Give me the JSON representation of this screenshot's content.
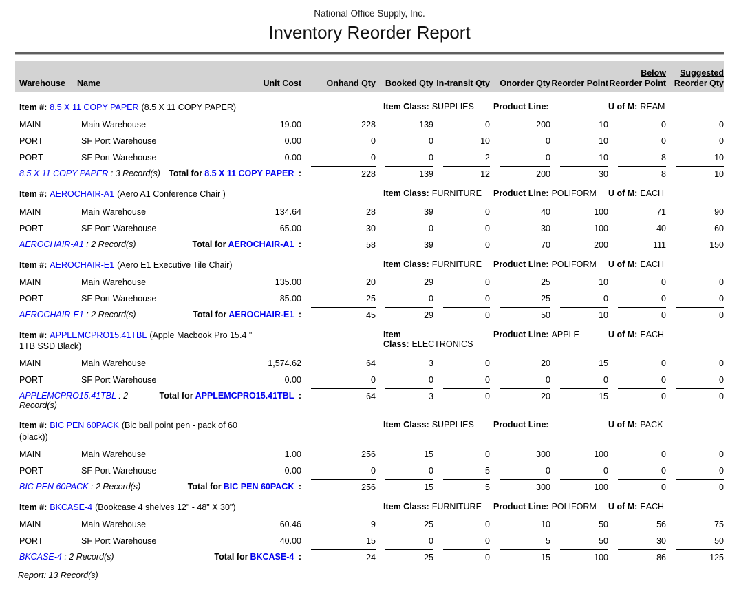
{
  "header": {
    "company": "National Office Supply, Inc.",
    "title": "Inventory Reorder Report"
  },
  "labels": {
    "item": "Item #:",
    "item_class": "Item Class:",
    "product_line": "Product Line:",
    "uom": "U of M:",
    "total_for": "Total for",
    "colon": " :",
    "sep": " : "
  },
  "columns": [
    [
      "Warehouse"
    ],
    [
      "Name"
    ],
    [
      "Unit Cost"
    ],
    [
      "Onhand Qty"
    ],
    [
      "Booked Qty"
    ],
    [
      "In-transit Qty"
    ],
    [
      "Onorder Qty"
    ],
    [
      "Reorder Point"
    ],
    [
      "Below",
      "Reorder Point"
    ],
    [
      "Suggested",
      "Reorder Qty"
    ]
  ],
  "groups": [
    {
      "code": "8.5 X 11 COPY PAPER",
      "description": "(8.5 X 11 COPY PAPER)",
      "item_class": "SUPPLIES",
      "product_line": "",
      "uom": "REAM",
      "rows": [
        {
          "warehouse": "MAIN",
          "name": "Main Warehouse",
          "unit_cost": "19.00",
          "qtys": [
            "228",
            "139",
            "0",
            "200",
            "10",
            "0",
            "0"
          ]
        },
        {
          "warehouse": "PORT",
          "name": "SF Port Warehouse",
          "unit_cost": "0.00",
          "qtys": [
            "0",
            "0",
            "10",
            "0",
            "10",
            "0",
            "0"
          ]
        },
        {
          "warehouse": "PORT",
          "name": "SF Port Warehouse",
          "unit_cost": "0.00",
          "qtys": [
            "0",
            "0",
            "2",
            "0",
            "10",
            "8",
            "10"
          ]
        }
      ],
      "records": "3 Record(s)",
      "totals": [
        "228",
        "139",
        "12",
        "200",
        "30",
        "8",
        "10"
      ]
    },
    {
      "code": "AEROCHAIR-A1",
      "description": "(Aero A1 Conference Chair )",
      "item_class": "FURNITURE",
      "product_line": "POLIFORM",
      "uom": "EACH",
      "rows": [
        {
          "warehouse": "MAIN",
          "name": "Main Warehouse",
          "unit_cost": "134.64",
          "qtys": [
            "28",
            "39",
            "0",
            "40",
            "100",
            "71",
            "90"
          ]
        },
        {
          "warehouse": "PORT",
          "name": "SF Port Warehouse",
          "unit_cost": "65.00",
          "qtys": [
            "30",
            "0",
            "0",
            "30",
            "100",
            "40",
            "60"
          ]
        }
      ],
      "records": "2 Record(s)",
      "totals": [
        "58",
        "39",
        "0",
        "70",
        "200",
        "111",
        "150"
      ]
    },
    {
      "code": "AEROCHAIR-E1",
      "description": "(Aero E1 Executive Tile Chair)",
      "item_class": "FURNITURE",
      "product_line": "POLIFORM",
      "uom": "EACH",
      "rows": [
        {
          "warehouse": "MAIN",
          "name": "Main Warehouse",
          "unit_cost": "135.00",
          "qtys": [
            "20",
            "29",
            "0",
            "25",
            "10",
            "0",
            "0"
          ]
        },
        {
          "warehouse": "PORT",
          "name": "SF Port Warehouse",
          "unit_cost": "85.00",
          "qtys": [
            "25",
            "0",
            "0",
            "25",
            "0",
            "0",
            "0"
          ]
        }
      ],
      "records": "2 Record(s)",
      "totals": [
        "45",
        "29",
        "0",
        "50",
        "10",
        "0",
        "0"
      ]
    },
    {
      "code": "APPLEMCPRO15.41TBL",
      "description": "(Apple Macbook Pro 15.4 \" 1TB SSD Black)",
      "item_class": "ELECTRONICS",
      "product_line": "APPLE",
      "uom": "EACH",
      "rows": [
        {
          "warehouse": "MAIN",
          "name": "Main Warehouse",
          "unit_cost": "1,574.62",
          "qtys": [
            "64",
            "3",
            "0",
            "20",
            "15",
            "0",
            "0"
          ]
        },
        {
          "warehouse": "PORT",
          "name": "SF Port Warehouse",
          "unit_cost": "0.00",
          "qtys": [
            "0",
            "0",
            "0",
            "0",
            "0",
            "0",
            "0"
          ]
        }
      ],
      "records": "2 Record(s)",
      "totals": [
        "64",
        "3",
        "0",
        "20",
        "15",
        "0",
        "0"
      ]
    },
    {
      "code": "BIC PEN 60PACK",
      "description": "(Bic ball point pen - pack of 60 (black))",
      "item_class": "SUPPLIES",
      "product_line": "",
      "uom": "PACK",
      "rows": [
        {
          "warehouse": "MAIN",
          "name": "Main Warehouse",
          "unit_cost": "1.00",
          "qtys": [
            "256",
            "15",
            "0",
            "300",
            "100",
            "0",
            "0"
          ]
        },
        {
          "warehouse": "PORT",
          "name": "SF Port Warehouse",
          "unit_cost": "0.00",
          "qtys": [
            "0",
            "0",
            "5",
            "0",
            "0",
            "0",
            "0"
          ]
        }
      ],
      "records": "2 Record(s)",
      "totals": [
        "256",
        "15",
        "5",
        "300",
        "100",
        "0",
        "0"
      ]
    },
    {
      "code": "BKCASE-4",
      "description": "(Bookcase 4 shelves 12\" - 48\" X 30\")",
      "item_class": "FURNITURE",
      "product_line": "POLIFORM",
      "uom": "EACH",
      "rows": [
        {
          "warehouse": "MAIN",
          "name": "Main Warehouse",
          "unit_cost": "60.46",
          "qtys": [
            "9",
            "25",
            "0",
            "10",
            "50",
            "56",
            "75"
          ]
        },
        {
          "warehouse": "PORT",
          "name": "SF Port Warehouse",
          "unit_cost": "40.00",
          "qtys": [
            "15",
            "0",
            "0",
            "5",
            "50",
            "30",
            "50"
          ]
        }
      ],
      "records": "2 Record(s)",
      "totals": [
        "24",
        "25",
        "0",
        "15",
        "100",
        "86",
        "125"
      ]
    }
  ],
  "footer": "Report: 13 Record(s)",
  "colors": {
    "link_blue": "#0000ee",
    "header_bar": "#d3d3d3"
  }
}
